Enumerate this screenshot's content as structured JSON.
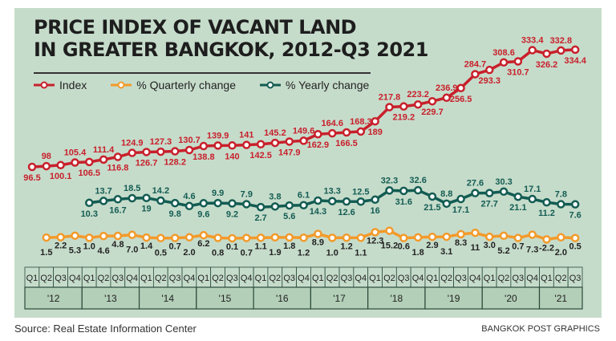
{
  "chart_data": {
    "type": "line",
    "title": "PRICE INDEX OF VACANT LAND IN GREATER BANGKOK, 2012-Q3 2021",
    "quarters": [
      "Q1",
      "Q2",
      "Q3",
      "Q4",
      "Q1",
      "Q2",
      "Q3",
      "Q4",
      "Q1",
      "Q2",
      "Q3",
      "Q4",
      "Q1",
      "Q2",
      "Q3",
      "Q4",
      "Q1",
      "Q2",
      "Q3",
      "Q4",
      "Q1",
      "Q2",
      "Q3",
      "Q4",
      "Q1",
      "Q2",
      "Q3",
      "Q4",
      "Q1",
      "Q2",
      "Q3",
      "Q4",
      "Q1",
      "Q2",
      "Q3",
      "Q4",
      "Q1",
      "Q2",
      "Q3"
    ],
    "years": [
      "'12",
      "'13",
      "'14",
      "'15",
      "'16",
      "'17",
      "'18",
      "'19",
      "'20",
      "'21"
    ],
    "series": [
      {
        "name": "Index",
        "color": "#c8202b",
        "start": 0,
        "values": [
          96.5,
          98.0,
          100.1,
          105.4,
          106.5,
          111.4,
          116.8,
          124.9,
          126.7,
          127.3,
          128.2,
          130.7,
          138.8,
          139.9,
          140.0,
          141.0,
          142.5,
          145.2,
          147.9,
          149.6,
          162.9,
          164.6,
          166.5,
          168.3,
          189.0,
          217.8,
          219.2,
          223.2,
          229.7,
          236.9,
          256.5,
          284.7,
          293.3,
          308.6,
          310.7,
          333.4,
          326.2,
          332.8,
          334.4
        ]
      },
      {
        "name": "% Quarterly change",
        "color": "#f39a2a",
        "start": 1,
        "values": [
          1.5,
          2.2,
          5.3,
          1.0,
          4.6,
          4.8,
          7.0,
          1.4,
          0.5,
          0.7,
          2.0,
          6.2,
          0.8,
          0.1,
          0.7,
          1.1,
          1.9,
          1.8,
          1.2,
          8.9,
          1.0,
          1.2,
          1.1,
          12.3,
          15.2,
          0.6,
          1.8,
          2.9,
          3.1,
          8.3,
          11,
          3.0,
          5.2,
          0.7,
          7.3,
          -2.2,
          2.0,
          0.5
        ]
      },
      {
        "name": "% Yearly change",
        "color": "#135c52",
        "start": 4,
        "values": [
          10.3,
          13.7,
          16.7,
          18.5,
          19.0,
          14.2,
          9.8,
          4.6,
          9.6,
          9.9,
          9.2,
          7.9,
          2.7,
          3.8,
          5.6,
          6.1,
          14.3,
          13.3,
          12.6,
          12.5,
          16.0,
          32.3,
          31.6,
          32.6,
          21.5,
          8.8,
          17.1,
          27.6,
          27.7,
          30.3,
          21.1,
          17.1,
          11.2,
          7.8,
          7.6
        ]
      }
    ],
    "grid": false,
    "legend": "top-left"
  },
  "title_line1": "PRICE INDEX OF VACANT LAND",
  "title_line2": "IN GREATER BANGKOK, 2012-Q3 2021",
  "source": "Source: Real Estate Information Center",
  "credit": "BANGKOK POST GRAPHICS"
}
